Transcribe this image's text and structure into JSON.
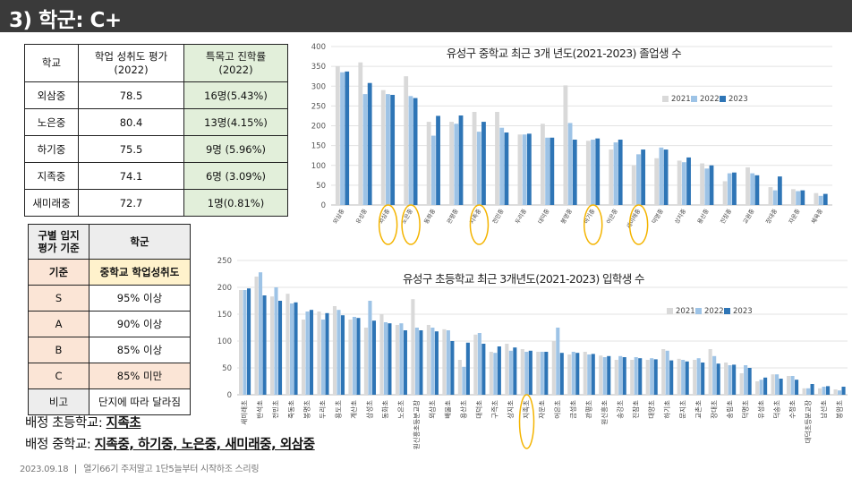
{
  "page_title": "3) 학군: C+",
  "table1": {
    "headers": [
      "학교",
      "학업 성취도 평가\n(2022)",
      "특목고 진학률\n(2022)"
    ],
    "rows": [
      [
        "외삼중",
        "78.5",
        "16명(5.43%)"
      ],
      [
        "노은중",
        "80.4",
        "13명(4.15%)"
      ],
      [
        "하기중",
        "75.5",
        "9명 (5.96%)"
      ],
      [
        "지족중",
        "74.1",
        "6명 (3.09%)"
      ],
      [
        "새미래중",
        "72.7",
        "1명(0.81%)"
      ]
    ]
  },
  "table2": {
    "headers": [
      "구별 입지\n평가 기준",
      "학군"
    ],
    "subheader": [
      "기준",
      "중학교 학업성취도"
    ],
    "rows": [
      [
        "S",
        "95% 이상"
      ],
      [
        "A",
        "90% 이상"
      ],
      [
        "B",
        "85% 이상"
      ],
      [
        "C",
        "85% 미만"
      ]
    ],
    "footer": [
      "비고",
      "단지에 따라 달라짐"
    ]
  },
  "notes": {
    "elementary_prefix": "배정 초등학교: ",
    "elementary_value": "지족초",
    "middle_prefix": "배정 중학교: ",
    "middle_value": "지족중, 하기중, 노은중, 새미래중, 외삼중"
  },
  "footer": {
    "date": "2023.09.18",
    "text": "열기66기 주저말고 1단5늘부터 시작하조 스리링"
  },
  "colors": {
    "s2021": "#d9d9d9",
    "s2022": "#9dc3e6",
    "s2023": "#2e75b6",
    "highlight": "#f4b400"
  },
  "chart_data": [
    {
      "type": "bar",
      "title": "유성구 중학교 최근 3개 년도(2021-2023) 졸업생 수",
      "ylim": [
        0,
        400
      ],
      "yticks": [
        0,
        50,
        100,
        150,
        200,
        250,
        300,
        350,
        400
      ],
      "legend_position": "right",
      "categories": [
        "외삼중",
        "유성중",
        "외삼중",
        "노은중",
        "동화중",
        "관평중",
        "지족중",
        "전민중",
        "두리중",
        "대덕중",
        "봉명중",
        "하기중",
        "어은중",
        "새미래중",
        "덕명중",
        "상지중",
        "용산중",
        "진잠중",
        "교원중",
        "장대중",
        "자운중",
        "체육중"
      ],
      "highlighted": [
        "외삼중",
        "노은중",
        "지족중",
        "하기중",
        "새미래중"
      ],
      "series": [
        {
          "name": "2021",
          "values": [
            350,
            360,
            290,
            325,
            210,
            210,
            235,
            235,
            178,
            205,
            302,
            162,
            140,
            100,
            118,
            112,
            105,
            60,
            95,
            45,
            40,
            30
          ]
        },
        {
          "name": "2022",
          "values": [
            335,
            280,
            280,
            275,
            175,
            205,
            185,
            195,
            178,
            170,
            207,
            165,
            158,
            128,
            145,
            108,
            92,
            80,
            80,
            37,
            35,
            23
          ]
        },
        {
          "name": "2023",
          "values": [
            337,
            308,
            278,
            270,
            225,
            226,
            210,
            183,
            180,
            170,
            165,
            168,
            165,
            140,
            140,
            120,
            100,
            82,
            75,
            72,
            37,
            28
          ]
        }
      ]
    },
    {
      "type": "bar",
      "title": "유성구 초등학교 최근 3개년도(2021-2023) 입학생 수",
      "ylim": [
        0,
        250
      ],
      "yticks": [
        0,
        50,
        100,
        150,
        200,
        250
      ],
      "legend_position": "right",
      "categories": [
        "새미래초",
        "반석초",
        "전민초",
        "죽동초",
        "봉명초",
        "두리초",
        "용도초",
        "계산초",
        "삼성초",
        "동화초",
        "노은초",
        "원신흥초등분교장",
        "외삼초",
        "배울초",
        "용산초",
        "대덕초",
        "구즉초",
        "상지초",
        "지족초",
        "자운초",
        "어은초",
        "금성초",
        "관평초",
        "원신흥초",
        "송강초",
        "진잠초",
        "대양초",
        "하기초",
        "문지초",
        "교촌초",
        "장대초",
        "송림초",
        "덕명초",
        "유성초",
        "덕송초",
        "수정초",
        "대덕초등분교장",
        "남선초",
        "봉암초"
      ],
      "highlighted": [
        "지족초"
      ],
      "series": [
        {
          "name": "2021",
          "values": [
            195,
            220,
            183,
            188,
            140,
            155,
            165,
            140,
            125,
            150,
            130,
            178,
            130,
            122,
            65,
            112,
            80,
            95,
            85,
            80,
            100,
            75,
            80,
            73,
            65,
            65,
            65,
            85,
            67,
            65,
            85,
            60,
            40,
            25,
            38,
            35,
            12,
            12,
            10
          ]
        },
        {
          "name": "2022",
          "values": [
            195,
            228,
            200,
            170,
            155,
            140,
            158,
            145,
            175,
            135,
            133,
            125,
            125,
            120,
            52,
            115,
            78,
            82,
            80,
            80,
            125,
            80,
            75,
            70,
            72,
            70,
            68,
            82,
            65,
            68,
            72,
            55,
            55,
            28,
            38,
            35,
            12,
            15,
            8
          ]
        },
        {
          "name": "2023",
          "values": [
            198,
            185,
            175,
            172,
            158,
            152,
            148,
            143,
            138,
            133,
            120,
            120,
            118,
            100,
            97,
            95,
            90,
            88,
            82,
            80,
            78,
            78,
            76,
            72,
            70,
            68,
            66,
            64,
            62,
            60,
            58,
            56,
            50,
            32,
            30,
            28,
            20,
            16,
            15
          ]
        }
      ]
    }
  ]
}
